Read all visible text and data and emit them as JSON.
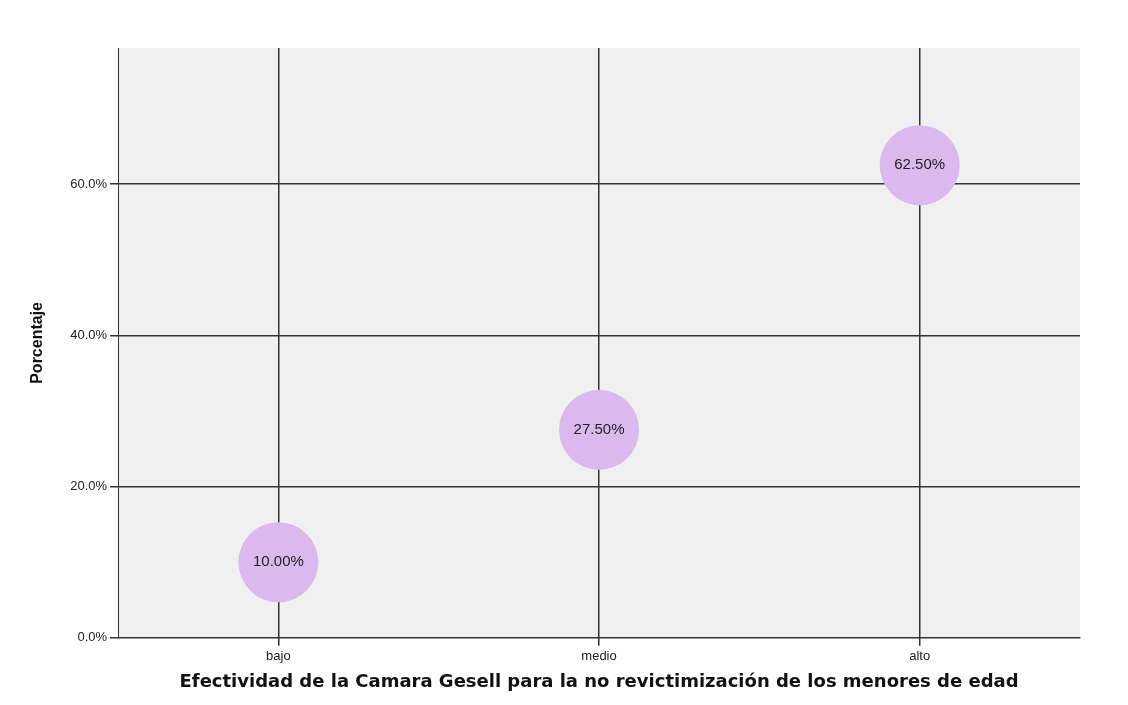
{
  "chart_data": {
    "type": "scatter",
    "xlabel": "Efectividad de la Camara Gesell para la no revictimización de los menores de edad",
    "ylabel": "Porcentaje",
    "categories": [
      "bajo",
      "medio",
      "alto"
    ],
    "series": [
      {
        "color": "#dbb9ee",
        "values": [
          10,
          27.5,
          62.5
        ],
        "value_labels": [
          "10.00%",
          "27.50%",
          "62.50%"
        ]
      }
    ],
    "ylim": [
      0,
      78
    ],
    "yticks": [
      {
        "value": 0,
        "label": "0.0%"
      },
      {
        "value": 20,
        "label": "20.0%"
      },
      {
        "value": 40,
        "label": "40.0%"
      },
      {
        "value": 60,
        "label": "60.0%"
      }
    ],
    "grid": true,
    "legend": false,
    "marker": "circle"
  }
}
